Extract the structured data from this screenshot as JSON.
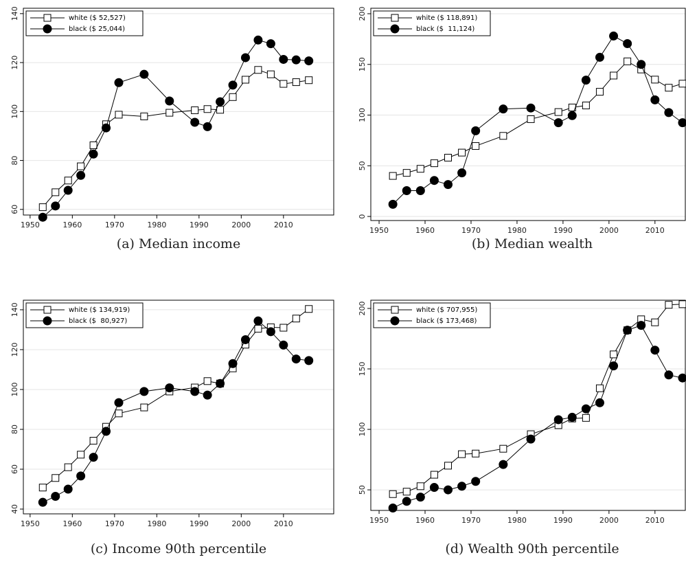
{
  "chart_data": [
    {
      "type": "line",
      "title": "(a) Median income",
      "x": [
        1953,
        1956,
        1959,
        1962,
        1965,
        1968,
        1971,
        1977,
        1983,
        1989,
        1992,
        1995,
        1998,
        2001,
        2004,
        2007,
        2010,
        2013,
        2016
      ],
      "xlim": [
        1948.4,
        2021.9
      ],
      "xticks": [
        1950,
        1960,
        1970,
        1980,
        1990,
        2000,
        2010
      ],
      "ylim": [
        57.7,
        142.2
      ],
      "yticks": [
        60,
        80,
        100,
        120,
        140
      ],
      "grid": true,
      "legend": "top-left",
      "series": [
        {
          "name": "white ($ 52,527)",
          "color": "#000000",
          "marker": "square-open",
          "values": [
            60.9,
            67,
            71.8,
            77.6,
            86.2,
            94.8,
            98.7,
            98,
            99.5,
            100.5,
            101,
            100.7,
            105.9,
            113,
            117,
            115.2,
            111.3,
            112,
            112.8
          ]
        },
        {
          "name": "black ($ 25,044)",
          "color": "#000000",
          "marker": "circle-filled",
          "values": [
            56.8,
            61.4,
            67.8,
            73.9,
            82.6,
            93.3,
            111.8,
            115.2,
            104.3,
            95.6,
            93.8,
            104,
            110.8,
            122,
            129.2,
            127.7,
            121.3,
            121.1,
            120.7
          ]
        }
      ]
    },
    {
      "type": "line",
      "title": "(b) Median wealth",
      "x": [
        1953,
        1956,
        1959,
        1962,
        1965,
        1968,
        1971,
        1977,
        1983,
        1989,
        1992,
        1995,
        1998,
        2001,
        2004,
        2007,
        2010,
        2013,
        2016
      ],
      "xlim": [
        1948.2,
        2016.6
      ],
      "xticks": [
        1950,
        1960,
        1970,
        1980,
        1990,
        2000,
        2010
      ],
      "ylim": [
        -4,
        205.4
      ],
      "yticks": [
        0,
        50,
        100,
        150,
        200
      ],
      "grid": true,
      "legend": "top-left",
      "series": [
        {
          "name": "white ($ 118,891)",
          "color": "#000000",
          "marker": "square-open",
          "values": [
            40,
            43,
            47,
            52.5,
            58,
            63,
            69.5,
            79.5,
            96,
            103,
            107.5,
            109.5,
            123,
            139,
            153,
            145,
            135,
            127,
            131
          ]
        },
        {
          "name": "black ($  11,124)",
          "color": "#000000",
          "marker": "circle-filled",
          "values": [
            12,
            25.5,
            25.5,
            35.5,
            31.5,
            43,
            84.5,
            106,
            107,
            92.5,
            99.5,
            134.5,
            157,
            178,
            170.5,
            150,
            115,
            102.5,
            92.5
          ]
        }
      ]
    },
    {
      "type": "line",
      "title": "(c) Income 90th percentile",
      "x": [
        1953,
        1956,
        1959,
        1962,
        1965,
        1968,
        1971,
        1977,
        1983,
        1989,
        1992,
        1995,
        1998,
        2001,
        2004,
        2007,
        2010,
        2013,
        2016
      ],
      "xlim": [
        1948.4,
        2021.9
      ],
      "xticks": [
        1950,
        1960,
        1970,
        1980,
        1990,
        2000,
        2010
      ],
      "ylim": [
        37.6,
        144.8
      ],
      "yticks": [
        40,
        60,
        80,
        100,
        120,
        140
      ],
      "grid": true,
      "legend": "top-left",
      "series": [
        {
          "name": "white ($ 134,919)",
          "color": "#000000",
          "marker": "square-open",
          "values": [
            50.8,
            55.6,
            61,
            67.3,
            74.3,
            81.3,
            88,
            91,
            99,
            101,
            104.2,
            103,
            110.6,
            122.5,
            130.5,
            131.2,
            131,
            135.6,
            140.4
          ]
        },
        {
          "name": "black ($  80,927)",
          "color": "#000000",
          "marker": "circle-filled",
          "values": [
            43.4,
            46.4,
            50,
            56.6,
            66,
            79,
            93.4,
            99,
            100.8,
            99,
            97.2,
            103,
            113,
            125,
            134.4,
            129,
            122.3,
            115.3,
            114.5
          ]
        }
      ]
    },
    {
      "type": "line",
      "title": "(d) Wealth 90th percentile",
      "x": [
        1953,
        1956,
        1959,
        1962,
        1965,
        1968,
        1971,
        1977,
        1983,
        1989,
        1992,
        1995,
        1998,
        2001,
        2004,
        2007,
        2010,
        2013,
        2016
      ],
      "xlim": [
        1948.2,
        2016.6
      ],
      "xticks": [
        1950,
        1960,
        1970,
        1980,
        1990,
        2000,
        2010
      ],
      "ylim": [
        33,
        206.8
      ],
      "yticks": [
        50,
        100,
        150,
        200
      ],
      "grid": true,
      "legend": "top-left",
      "series": [
        {
          "name": "white ($ 707,955)",
          "color": "#000000",
          "marker": "square-open",
          "values": [
            46.5,
            48.5,
            53,
            62.5,
            70,
            79.5,
            80,
            84,
            96,
            103.5,
            109,
            109.5,
            134,
            162,
            182,
            191,
            188.5,
            203,
            203.5
          ]
        },
        {
          "name": "black ($ 173,468)",
          "color": "#000000",
          "marker": "circle-filled",
          "values": [
            35,
            40.5,
            44,
            52,
            50,
            53,
            57,
            71,
            92,
            108,
            110,
            117,
            122,
            152.5,
            182,
            186,
            165.5,
            145,
            142.5
          ]
        }
      ]
    }
  ]
}
